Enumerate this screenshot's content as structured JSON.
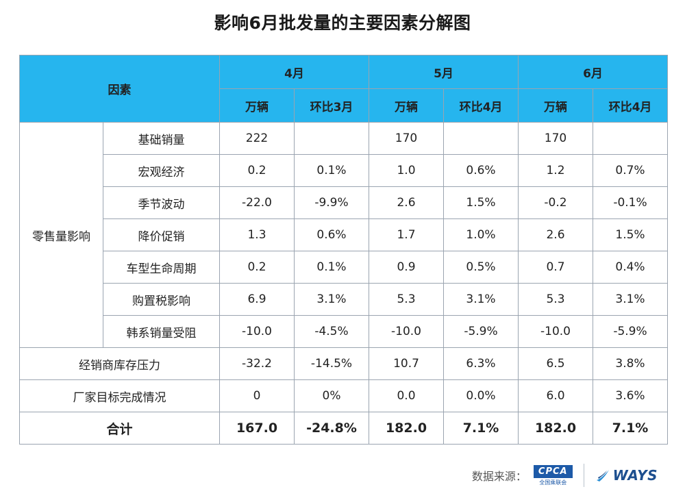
{
  "title": "影响6月批发量的主要因素分解图",
  "header": {
    "factor": "因素",
    "months": [
      "4月",
      "5月",
      "6月"
    ],
    "sub": [
      "万辆",
      "环比3月",
      "万辆",
      "环比4月",
      "万辆",
      "环比4月"
    ]
  },
  "group_label": "零售量影响",
  "rows": [
    {
      "label": "基础销量",
      "v": [
        "222",
        "",
        "170",
        "",
        "170",
        ""
      ]
    },
    {
      "label": "宏观经济",
      "v": [
        "0.2",
        "0.1%",
        "1.0",
        "0.6%",
        "1.2",
        "0.7%"
      ]
    },
    {
      "label": "季节波动",
      "v": [
        "-22.0",
        "-9.9%",
        "2.6",
        "1.5%",
        "-0.2",
        "-0.1%"
      ]
    },
    {
      "label": "降价促销",
      "v": [
        "1.3",
        "0.6%",
        "1.7",
        "1.0%",
        "2.6",
        "1.5%"
      ]
    },
    {
      "label": "车型生命周期",
      "v": [
        "0.2",
        "0.1%",
        "0.9",
        "0.5%",
        "0.7",
        "0.4%"
      ]
    },
    {
      "label": "购置税影响",
      "v": [
        "6.9",
        "3.1%",
        "5.3",
        "3.1%",
        "5.3",
        "3.1%"
      ]
    },
    {
      "label": "韩系销量受阻",
      "v": [
        "-10.0",
        "-4.5%",
        "-10.0",
        "-5.9%",
        "-10.0",
        "-5.9%"
      ]
    }
  ],
  "extra_rows": [
    {
      "label": "经销商库存压力",
      "v": [
        "-32.2",
        "-14.5%",
        "10.7",
        "6.3%",
        "6.5",
        "3.8%"
      ]
    },
    {
      "label": "厂家目标完成情况",
      "v": [
        "0",
        "0%",
        "0.0",
        "0.0%",
        "6.0",
        "3.6%"
      ]
    }
  ],
  "total": {
    "label": "合计",
    "v": [
      "167.0",
      "-24.8%",
      "182.0",
      "7.1%",
      "182.0",
      "7.1%"
    ]
  },
  "footer": {
    "source_label": "数据来源：",
    "cpca": "CPCA",
    "cpca_sub": "全国乘联会",
    "ways": "WAYS"
  },
  "colors": {
    "header_bg": "#26b5ee",
    "highlight": "#d9252b"
  }
}
